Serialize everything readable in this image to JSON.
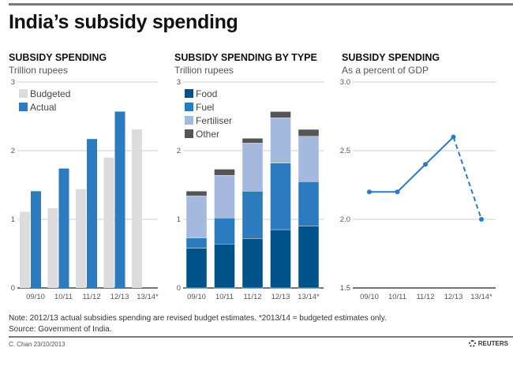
{
  "title": "India’s subsidy spending",
  "chart_data": [
    {
      "type": "bar",
      "title": "SUBSIDY SPENDING",
      "subtitle": "Trillion rupees",
      "categories": [
        "09/10",
        "10/11",
        "11/12",
        "12/13",
        "13/14*"
      ],
      "series": [
        {
          "name": "Budgeted",
          "color": "#dcdcdf",
          "values": [
            1.11,
            1.16,
            1.44,
            1.9,
            2.31
          ]
        },
        {
          "name": "Actual",
          "color": "#2c7bbf",
          "values": [
            1.41,
            1.74,
            2.17,
            2.57,
            null
          ]
        }
      ],
      "yticks": [
        "0",
        "1",
        "2",
        "3"
      ],
      "ylim": [
        0,
        3
      ],
      "grid": true,
      "legend": "top-left"
    },
    {
      "type": "bar",
      "stacked": true,
      "title": "SUBSIDY SPENDING BY TYPE",
      "subtitle": "Trillion rupees",
      "categories": [
        "09/10",
        "10/11",
        "11/12",
        "12/13",
        "13/14*"
      ],
      "series": [
        {
          "name": "Food",
          "color": "#005389",
          "values": [
            0.58,
            0.64,
            0.72,
            0.85,
            0.9
          ]
        },
        {
          "name": "Fuel",
          "color": "#2c7bbf",
          "values": [
            0.15,
            0.38,
            0.69,
            0.97,
            0.65
          ]
        },
        {
          "name": "Fertiliser",
          "color": "#a5b8de",
          "values": [
            0.61,
            0.62,
            0.7,
            0.66,
            0.66
          ]
        },
        {
          "name": "Other",
          "color": "#555555",
          "values": [
            0.07,
            0.09,
            0.07,
            0.09,
            0.1
          ]
        }
      ],
      "yticks": [
        "0",
        "1",
        "2",
        "3"
      ],
      "ylim": [
        0,
        3
      ],
      "grid": true,
      "legend": "top-left"
    },
    {
      "type": "line",
      "title": "SUBSIDY SPENDING",
      "subtitle": "As a percent of GDP",
      "categories": [
        "09/10",
        "10/11",
        "11/12",
        "12/13",
        "13/14*"
      ],
      "series": [
        {
          "name": "Percent of GDP",
          "color": "#2c7bbf",
          "values": [
            2.2,
            2.2,
            2.4,
            2.6,
            2.0
          ],
          "dashed_from_index": 3
        }
      ],
      "yticks": [
        "1.5",
        "2.0",
        "2.5",
        "3.0"
      ],
      "ylim": [
        1.5,
        3.0
      ],
      "grid": true
    }
  ],
  "footer": {
    "note": "Note: 2012/13 actual subsidies spending are revised budget estimates. *2013/14 = budgeted estimates only.",
    "source": "Source: Government of India.",
    "credit": "C. Chan 23/10/2013",
    "logo": "REUTERS"
  }
}
